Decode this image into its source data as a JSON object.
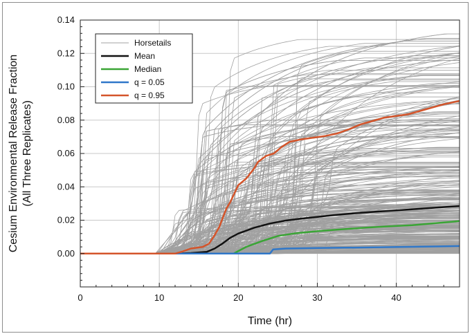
{
  "chart_data": {
    "type": "line",
    "xlabel": "Time (hr)",
    "ylabel_line1": "Cesium Environmental Release Fraction",
    "ylabel_line2": "(All Three Replicates)",
    "xlim": [
      0,
      48
    ],
    "ylim": [
      -0.02,
      0.14
    ],
    "xticks": [
      0,
      10,
      20,
      30,
      40
    ],
    "xtick_labels": [
      "0",
      "10",
      "20",
      "30",
      "40"
    ],
    "yticks": [
      0,
      0.02,
      0.04,
      0.06,
      0.08,
      0.1,
      0.12,
      0.14
    ],
    "ytick_labels": [
      "0.00",
      "0.02",
      "0.04",
      "0.06",
      "0.08",
      "0.10",
      "0.12",
      "0.14"
    ],
    "grid": true,
    "legend_position": "top-left",
    "horsetail_color": "#a0a0a0",
    "series": [
      {
        "name": "Mean",
        "color": "#111111",
        "points": [
          [
            0,
            0
          ],
          [
            12,
            0
          ],
          [
            14,
            0.0003
          ],
          [
            16,
            0.001
          ],
          [
            17,
            0.003
          ],
          [
            18,
            0.006
          ],
          [
            19,
            0.0095
          ],
          [
            20,
            0.012
          ],
          [
            22,
            0.0155
          ],
          [
            24,
            0.018
          ],
          [
            26,
            0.0198
          ],
          [
            28,
            0.021
          ],
          [
            30,
            0.022
          ],
          [
            32,
            0.023
          ],
          [
            35,
            0.0243
          ],
          [
            38,
            0.0253
          ],
          [
            41,
            0.0262
          ],
          [
            44,
            0.0272
          ],
          [
            48,
            0.0285
          ]
        ]
      },
      {
        "name": "Median",
        "color": "#3aa535",
        "points": [
          [
            0,
            0
          ],
          [
            19.4,
            0
          ],
          [
            20,
            0.0015
          ],
          [
            21,
            0.004
          ],
          [
            23,
            0.0075
          ],
          [
            24,
            0.009
          ],
          [
            25,
            0.0105
          ],
          [
            27,
            0.012
          ],
          [
            30,
            0.0134
          ],
          [
            33,
            0.0145
          ],
          [
            36,
            0.0155
          ],
          [
            39,
            0.0163
          ],
          [
            42,
            0.017
          ],
          [
            45,
            0.0182
          ],
          [
            48,
            0.0195
          ]
        ]
      },
      {
        "name": "q = 0.05",
        "color": "#2f77c9",
        "points": [
          [
            0,
            0
          ],
          [
            24,
            0
          ],
          [
            24.4,
            0.0025
          ],
          [
            26,
            0.003
          ],
          [
            30,
            0.0033
          ],
          [
            35,
            0.0036
          ],
          [
            40,
            0.0039
          ],
          [
            44,
            0.0042
          ],
          [
            48,
            0.0045
          ]
        ]
      },
      {
        "name": "q = 0.95",
        "color": "#d4542a",
        "points": [
          [
            0,
            0
          ],
          [
            12,
            0
          ],
          [
            12.8,
            0.001
          ],
          [
            14,
            0.003
          ],
          [
            15.5,
            0.004
          ],
          [
            16.3,
            0.006
          ],
          [
            17,
            0.011
          ],
          [
            17.6,
            0.016
          ],
          [
            18,
            0.021
          ],
          [
            18.5,
            0.027
          ],
          [
            19,
            0.031
          ],
          [
            19.5,
            0.036
          ],
          [
            20,
            0.041
          ],
          [
            21,
            0.045
          ],
          [
            22,
            0.051
          ],
          [
            22.5,
            0.055
          ],
          [
            23.5,
            0.0585
          ],
          [
            24.5,
            0.06
          ],
          [
            25.5,
            0.064
          ],
          [
            26.5,
            0.067
          ],
          [
            28,
            0.0685
          ],
          [
            29.5,
            0.0695
          ],
          [
            31,
            0.0705
          ],
          [
            32.5,
            0.072
          ],
          [
            34,
            0.0745
          ],
          [
            35.5,
            0.0775
          ],
          [
            37,
            0.0795
          ],
          [
            38.5,
            0.0815
          ],
          [
            40,
            0.0825
          ],
          [
            41.5,
            0.0835
          ],
          [
            43,
            0.0855
          ],
          [
            44.5,
            0.0875
          ],
          [
            46,
            0.0895
          ],
          [
            48,
            0.0915
          ]
        ]
      }
    ],
    "legend": [
      {
        "label": "Horsetails",
        "color": "#a0a0a0",
        "width": 1
      },
      {
        "label": "Mean",
        "color": "#111111",
        "width": 2.5
      },
      {
        "label": "Median",
        "color": "#3aa535",
        "width": 2.5
      },
      {
        "label": "q = 0.05",
        "color": "#2f77c9",
        "width": 2.5
      },
      {
        "label": "q = 0.95",
        "color": "#d4542a",
        "width": 2.5
      }
    ]
  }
}
